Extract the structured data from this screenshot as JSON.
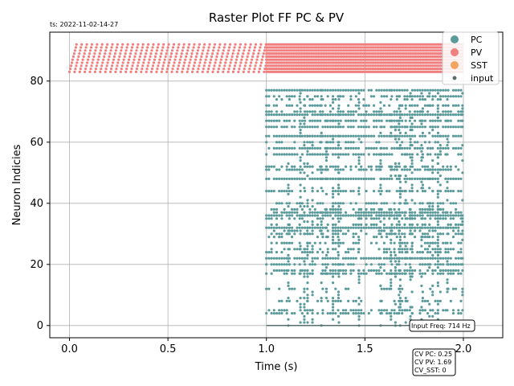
{
  "timestamp": "ts: 2022-11-02-14-27",
  "chart_data": {
    "type": "scatter",
    "title": "Raster Plot FF PC & PV",
    "xlabel": "Time (s)",
    "ylabel": "Neuron Indicies",
    "xlim": [
      -0.1,
      2.2
    ],
    "ylim": [
      -4,
      96
    ],
    "xticks": [
      0.0,
      0.5,
      1.0,
      1.5,
      2.0
    ],
    "xtick_labels": [
      "0.0",
      "0.5",
      "1.0",
      "1.5",
      "2.0"
    ],
    "yticks": [
      0,
      20,
      40,
      60,
      80
    ],
    "ytick_labels": [
      "0",
      "20",
      "40",
      "60",
      "80"
    ],
    "grid": true,
    "legend_position": "top-right",
    "series": [
      {
        "name": "PC",
        "color": "#5b9a9a",
        "neuron_range": [
          0,
          77
        ],
        "t_start": 1.0,
        "t_end": 2.0,
        "active_neurons": [
          4,
          5,
          8,
          12,
          17,
          18,
          20,
          22,
          24,
          25,
          27,
          29,
          30,
          31,
          32,
          33,
          35,
          36,
          37,
          38,
          40,
          44,
          48,
          51,
          52,
          56,
          58,
          60,
          62,
          65,
          67,
          69,
          70,
          72,
          74,
          75,
          77
        ]
      },
      {
        "name": "PV",
        "color": "#f08080",
        "neuron_range": [
          83,
          92
        ],
        "t_start": 0.0,
        "t_end": 2.0
      },
      {
        "name": "SST",
        "color": "#f4a460"
      },
      {
        "name": "input",
        "color": "#5a6e6e",
        "neuron": 0,
        "t_start": 1.0,
        "t_end": 2.0
      }
    ],
    "annotations": {
      "input_freq": "Input Freq: 714 Hz",
      "cv_pc": "CV PC: 0.25",
      "cv_pv": "CV PV: 1.69",
      "cv_sst": "CV_SST: 0"
    }
  }
}
